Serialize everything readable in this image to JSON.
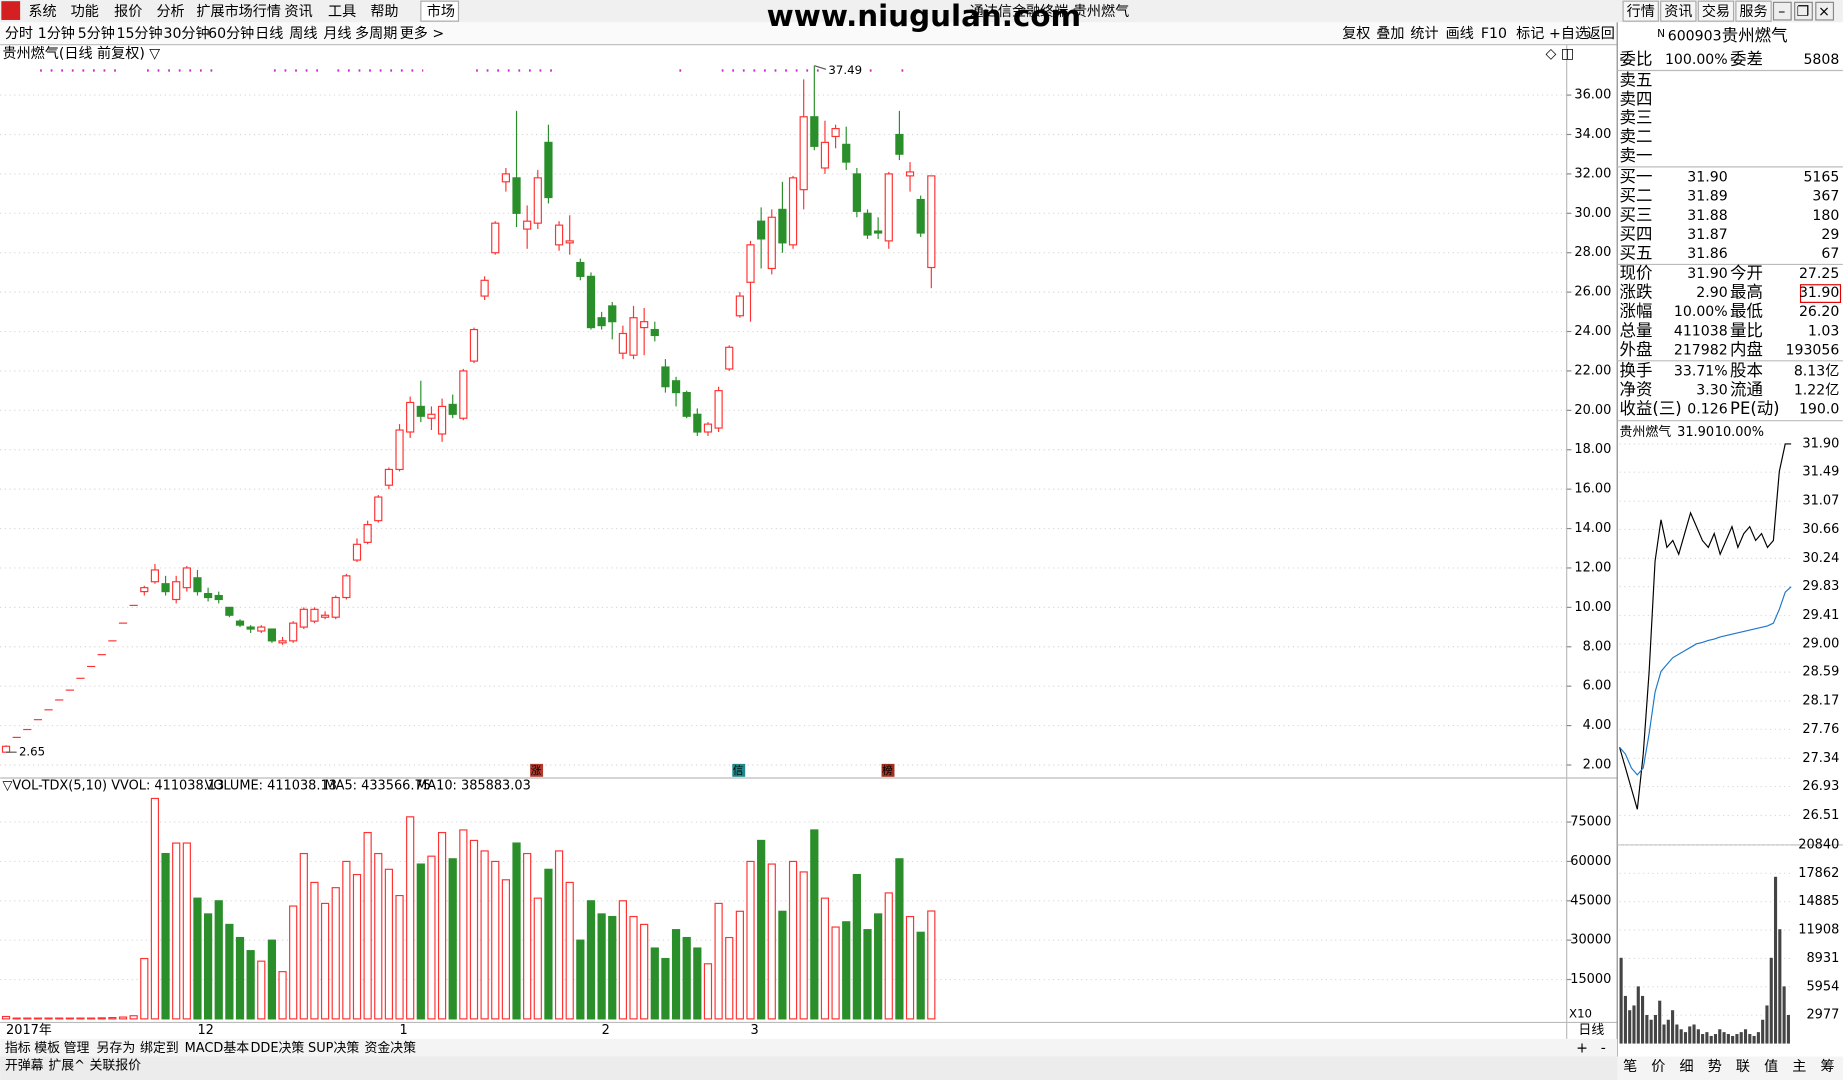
{
  "menu": {
    "items": [
      "系统",
      "功能",
      "报价",
      "分析",
      "扩展市场行情",
      "资讯",
      "工具",
      "帮助"
    ],
    "active": "市场"
  },
  "watermark": "www.niugulan.com",
  "window_title": "通达信金融终端 贵州燃气",
  "top_buttons": [
    "行情",
    "资讯",
    "交易",
    "服务"
  ],
  "periods": {
    "items": [
      "分时",
      "1分钟",
      "5分钟",
      "15分钟",
      "30分钟",
      "60分钟",
      "日线",
      "周线",
      "月线",
      "多周期",
      "更多 >"
    ],
    "active": "日线"
  },
  "tools": [
    "复权",
    "叠加",
    "统计",
    "画线",
    "F10",
    "标记",
    "+自选",
    "返回"
  ],
  "daily": {
    "type": "candlestick",
    "title": "贵州燃气(日线 前复权) ▽",
    "up_color": "#ff3232",
    "down_color": "#2a8f2a",
    "grid": true,
    "ylim": [
      1.46,
      38.56
    ],
    "yticks": [
      {
        "value": 2,
        "label": "2.00"
      },
      {
        "value": 4,
        "label": "4.00"
      },
      {
        "value": 6,
        "label": "6.00"
      },
      {
        "value": 8,
        "label": "8.00"
      },
      {
        "value": 10,
        "label": "10.00"
      },
      {
        "value": 12,
        "label": "12.00"
      },
      {
        "value": 14,
        "label": "14.00"
      },
      {
        "value": 16,
        "label": "16.00"
      },
      {
        "value": 18,
        "label": "18.00"
      },
      {
        "value": 20,
        "label": "20.00"
      },
      {
        "value": 22,
        "label": "22.00"
      },
      {
        "value": 24,
        "label": "24.00"
      },
      {
        "value": 26,
        "label": "26.00"
      },
      {
        "value": 28,
        "label": "28.00"
      },
      {
        "value": 30,
        "label": "30.00"
      },
      {
        "value": 32,
        "label": "32.00"
      },
      {
        "value": 34,
        "label": "34.00"
      },
      {
        "value": 36,
        "label": "36.00"
      }
    ],
    "high": 37.49,
    "low": 2.65,
    "signals": [
      {
        "label": "涨",
        "color": "#b03a2e"
      },
      {
        "label": "信",
        "color": "#1f8a8a"
      },
      {
        "label": "榜",
        "color": "#a03020"
      }
    ],
    "categories": [
      "2017年",
      null,
      null,
      null,
      null,
      null,
      null,
      null,
      null,
      null,
      null,
      null,
      null,
      null,
      null,
      null,
      null,
      null,
      "12",
      null,
      null,
      null,
      null,
      null,
      null,
      null,
      null,
      null,
      null,
      null,
      null,
      null,
      null,
      null,
      null,
      null,
      null,
      "1",
      null,
      null,
      null,
      null,
      null,
      null,
      null,
      null,
      null,
      null,
      null,
      null,
      null,
      null,
      null,
      null,
      null,
      null,
      "2",
      null,
      null,
      null,
      null,
      null,
      null,
      null,
      null,
      null,
      null,
      null,
      null,
      null,
      "3",
      null,
      null,
      null,
      null,
      null,
      null,
      null,
      null,
      null,
      null,
      null,
      null,
      null,
      null,
      null,
      null,
      null
    ],
    "candles": [
      [
        2.65,
        3.0,
        2.65,
        2.95
      ],
      [
        3.4,
        3.4,
        3.4,
        3.4
      ],
      [
        3.8,
        3.8,
        3.8,
        3.8
      ],
      [
        4.3,
        4.3,
        4.3,
        4.3
      ],
      [
        4.8,
        4.8,
        4.8,
        4.8
      ],
      [
        5.3,
        5.3,
        5.3,
        5.3
      ],
      [
        5.8,
        5.8,
        5.8,
        5.8
      ],
      [
        6.4,
        6.4,
        6.4,
        6.4
      ],
      [
        7.0,
        7.0,
        7.0,
        7.0
      ],
      [
        7.6,
        7.6,
        7.6,
        7.6
      ],
      [
        8.3,
        8.3,
        8.3,
        8.3
      ],
      [
        9.2,
        9.2,
        9.2,
        9.2
      ],
      [
        10.1,
        10.1,
        10.1,
        10.1
      ],
      [
        10.8,
        11.1,
        10.6,
        11.0
      ],
      [
        11.3,
        12.2,
        11.2,
        11.9
      ],
      [
        11.2,
        11.6,
        10.6,
        10.8
      ],
      [
        10.4,
        11.6,
        10.2,
        11.3
      ],
      [
        11.0,
        12.1,
        10.8,
        12.0
      ],
      [
        11.5,
        11.9,
        10.6,
        10.8
      ],
      [
        10.7,
        11.0,
        10.3,
        10.5
      ],
      [
        10.6,
        10.8,
        10.2,
        10.4
      ],
      [
        10.0,
        10.0,
        9.5,
        9.6
      ],
      [
        9.3,
        9.4,
        9.0,
        9.1
      ],
      [
        9.0,
        9.1,
        8.7,
        8.9
      ],
      [
        8.8,
        9.1,
        8.7,
        9.0
      ],
      [
        8.9,
        8.9,
        8.2,
        8.3
      ],
      [
        8.2,
        8.5,
        8.1,
        8.3
      ],
      [
        8.3,
        9.3,
        8.2,
        9.2
      ],
      [
        9.0,
        10.0,
        8.9,
        9.9
      ],
      [
        9.3,
        10.0,
        9.2,
        9.9
      ],
      [
        9.5,
        9.8,
        9.4,
        9.6
      ],
      [
        9.5,
        10.6,
        9.4,
        10.5
      ],
      [
        10.5,
        11.7,
        10.4,
        11.6
      ],
      [
        12.4,
        13.5,
        12.3,
        13.2
      ],
      [
        13.3,
        14.4,
        13.2,
        14.2
      ],
      [
        14.4,
        15.7,
        14.3,
        15.6
      ],
      [
        16.2,
        17.1,
        16.0,
        17.0
      ],
      [
        17.0,
        19.3,
        16.9,
        19.0
      ],
      [
        18.9,
        20.7,
        18.6,
        20.4
      ],
      [
        20.2,
        21.5,
        19.4,
        19.7
      ],
      [
        19.6,
        20.2,
        19.0,
        19.8
      ],
      [
        18.8,
        20.6,
        18.4,
        20.2
      ],
      [
        20.3,
        20.8,
        19.6,
        19.8
      ],
      [
        19.6,
        22.1,
        19.5,
        22.0
      ],
      [
        22.5,
        24.2,
        22.4,
        24.1
      ],
      [
        25.8,
        26.8,
        25.6,
        26.6
      ],
      [
        28.0,
        29.6,
        27.9,
        29.5
      ],
      [
        31.6,
        32.3,
        31.1,
        32.0
      ],
      [
        31.8,
        35.2,
        29.3,
        30.0
      ],
      [
        29.2,
        30.4,
        28.2,
        29.6
      ],
      [
        29.5,
        32.2,
        29.2,
        31.8
      ],
      [
        33.6,
        34.5,
        30.5,
        30.8
      ],
      [
        28.4,
        29.6,
        28.1,
        29.4
      ],
      [
        28.5,
        29.9,
        27.9,
        28.6
      ],
      [
        27.5,
        27.7,
        26.6,
        26.8
      ],
      [
        26.8,
        27.0,
        24.1,
        24.2
      ],
      [
        24.7,
        25.0,
        24.1,
        24.3
      ],
      [
        25.3,
        25.5,
        23.6,
        24.5
      ],
      [
        22.9,
        24.3,
        22.6,
        23.9
      ],
      [
        22.8,
        25.3,
        22.6,
        24.7
      ],
      [
        24.2,
        25.2,
        22.8,
        24.5
      ],
      [
        24.1,
        24.5,
        23.5,
        23.8
      ],
      [
        22.2,
        22.6,
        20.9,
        21.2
      ],
      [
        21.5,
        21.7,
        20.2,
        20.9
      ],
      [
        20.9,
        21.0,
        19.6,
        19.7
      ],
      [
        19.8,
        20.1,
        18.7,
        18.9
      ],
      [
        18.9,
        19.4,
        18.7,
        19.3
      ],
      [
        19.1,
        21.2,
        18.9,
        21.0
      ],
      [
        22.1,
        23.3,
        22.0,
        23.2
      ],
      [
        24.8,
        26.0,
        24.7,
        25.8
      ],
      [
        26.5,
        28.6,
        24.5,
        28.4
      ],
      [
        29.6,
        30.3,
        27.2,
        28.7
      ],
      [
        27.2,
        30.2,
        26.9,
        29.8
      ],
      [
        30.2,
        31.6,
        28.0,
        28.5
      ],
      [
        28.4,
        31.9,
        28.2,
        31.8
      ],
      [
        31.2,
        36.8,
        30.2,
        34.9
      ],
      [
        34.9,
        37.49,
        33.2,
        33.4
      ],
      [
        32.3,
        34.7,
        32.0,
        33.6
      ],
      [
        33.9,
        34.5,
        33.3,
        34.3
      ],
      [
        33.5,
        34.4,
        32.2,
        32.6
      ],
      [
        32.0,
        32.3,
        29.8,
        30.1
      ],
      [
        30.0,
        30.2,
        28.7,
        28.9
      ],
      [
        29.1,
        29.8,
        28.7,
        29.0
      ],
      [
        28.6,
        32.1,
        28.2,
        32.0
      ],
      [
        34.0,
        35.2,
        32.7,
        33.0
      ],
      [
        31.9,
        32.6,
        31.1,
        32.1
      ],
      [
        30.7,
        30.9,
        28.8,
        29.0
      ],
      [
        27.25,
        31.9,
        26.2,
        31.9
      ]
    ]
  },
  "volume": {
    "type": "bar",
    "header": "▽VOL-TDX(5,10) VVOL: 411038.13",
    "legend": [
      {
        "name": "VOLUME: 411038.13",
        "color": "#1e78c8"
      },
      {
        "name": "MA5: 433566.75",
        "color": "#1e78c8"
      },
      {
        "name": "MA10: 385883.03",
        "color": "#a0208c"
      }
    ],
    "multiplier": "X10",
    "period": "日线",
    "ylim": [
      0,
      91800
    ],
    "yticks": [
      15000,
      30000,
      45000,
      60000,
      75000
    ],
    "values": [
      900,
      300,
      300,
      300,
      300,
      300,
      300,
      300,
      300,
      400,
      500,
      700,
      1200,
      23000,
      84000,
      63000,
      67000,
      67000,
      46000,
      40000,
      45000,
      36000,
      31000,
      26000,
      22000,
      30000,
      18000,
      43000,
      63000,
      52000,
      44000,
      50000,
      60000,
      55000,
      71000,
      63000,
      57000,
      47000,
      77000,
      59000,
      62000,
      71000,
      61000,
      72000,
      68000,
      64000,
      60000,
      53000,
      67000,
      63000,
      46000,
      57000,
      64000,
      52000,
      30000,
      45000,
      40000,
      39000,
      45000,
      39000,
      36000,
      27000,
      23000,
      34000,
      31000,
      27000,
      21000,
      44000,
      31000,
      41000,
      60000,
      68000,
      59000,
      41000,
      60000,
      56000,
      72000,
      46000,
      35000,
      37000,
      55000,
      34000,
      40000,
      48000,
      61000,
      39000,
      33000,
      41104
    ]
  },
  "bottom_tabs": {
    "items": [
      "指标",
      "模板",
      "管理",
      "另存为",
      "绑定到",
      "MACD基本",
      "DDE决策",
      "SUP决策",
      "资金决策"
    ],
    "active": "管理"
  },
  "zoom": [
    "+",
    "-"
  ],
  "status": [
    "开弹幕",
    "扩展^",
    "关联报价"
  ],
  "quote": {
    "flag": "N",
    "code": "600903",
    "name": "贵州燃气",
    "ratio": [
      {
        "text": "委比"
      },
      {
        "text": "100.00%",
        "color": "#e00000"
      },
      {
        "text": "委差"
      },
      {
        "text": "5808",
        "color": "#e00000"
      }
    ],
    "asks": [
      "卖五",
      "卖四",
      "卖三",
      "卖二",
      "卖一"
    ],
    "bids": [
      {
        "label": "买一",
        "price": "31.90",
        "volume": "5165"
      },
      {
        "label": "买二",
        "price": "31.89",
        "volume": "367"
      },
      {
        "label": "买三",
        "price": "31.88",
        "volume": "180"
      },
      {
        "label": "买四",
        "price": "31.87",
        "volume": "29"
      },
      {
        "label": "买五",
        "price": "31.86",
        "volume": "67"
      }
    ],
    "price_color": "#e00000",
    "stats": [
      [
        {
          "text": "现价"
        },
        {
          "text": "31.90",
          "color": "#e00000"
        },
        {
          "text": "今开"
        },
        {
          "text": "27.25",
          "color": "#009900"
        }
      ],
      [
        {
          "text": "涨跌"
        },
        {
          "text": "2.90",
          "color": "#e00000"
        },
        {
          "text": "最高"
        },
        {
          "text": "31.90",
          "color": "#e00000",
          "boxed": true
        }
      ],
      [
        {
          "text": "涨幅"
        },
        {
          "text": "10.00%",
          "color": "#e00000"
        },
        {
          "text": "最低"
        },
        {
          "text": "26.20",
          "color": "#009900"
        }
      ],
      [
        {
          "text": "总量"
        },
        {
          "text": "411038"
        },
        {
          "text": "量比"
        },
        {
          "text": "1.03",
          "color": "#e00000"
        }
      ],
      [
        {
          "text": "外盘"
        },
        {
          "text": "217982",
          "color": "#e00000"
        },
        {
          "text": "内盘"
        },
        {
          "text": "193056",
          "color": "#009900"
        }
      ],
      [
        {
          "text": "换手"
        },
        {
          "text": "33.71%"
        },
        {
          "text": "股本"
        },
        {
          "text": "8.13亿"
        }
      ],
      [
        {
          "text": "净资"
        },
        {
          "text": "3.30"
        },
        {
          "text": "流通"
        },
        {
          "text": "1.22亿"
        }
      ],
      [
        {
          "text": "收益(三)"
        },
        {
          "text": "0.126"
        },
        {
          "text": "PE(动)"
        },
        {
          "text": "190.0"
        }
      ]
    ]
  },
  "intraday": {
    "type": "line",
    "title": {
      "name": "贵州燃气",
      "price": "31.90",
      "change": "10.00%"
    },
    "up_color": "#e00000",
    "down_color": "#009900",
    "ylim": [
      26.1,
      31.93
    ],
    "yticks": [
      {
        "value": 26.51,
        "label": "26.51"
      },
      {
        "value": 26.93,
        "label": "26.93"
      },
      {
        "value": 27.34,
        "label": "27.34"
      },
      {
        "value": 27.76,
        "label": "27.76"
      },
      {
        "value": 28.17,
        "label": "28.17"
      },
      {
        "value": 28.59,
        "label": "28.59"
      },
      {
        "value": 29.0,
        "label": "29.00"
      },
      {
        "value": 29.41,
        "label": "29.41"
      },
      {
        "value": 29.83,
        "label": "29.83"
      },
      {
        "value": 30.24,
        "label": "30.24"
      },
      {
        "value": 30.66,
        "label": "30.66"
      },
      {
        "value": 31.07,
        "label": "31.07"
      },
      {
        "value": 31.49,
        "label": "31.49"
      },
      {
        "value": 31.9,
        "label": "31.90"
      }
    ],
    "series": [
      {
        "name": "价格",
        "color": "#000000",
        "values": [
          27.5,
          27.2,
          26.9,
          26.6,
          27.4,
          28.6,
          30.2,
          30.8,
          30.4,
          30.5,
          30.3,
          30.6,
          30.9,
          30.7,
          30.5,
          30.4,
          30.6,
          30.3,
          30.5,
          30.7,
          30.4,
          30.6,
          30.7,
          30.5,
          30.6,
          30.4,
          30.5,
          31.5,
          31.9,
          31.9
        ]
      },
      {
        "name": "均价",
        "color": "#1e78c8",
        "values": [
          27.5,
          27.4,
          27.2,
          27.1,
          27.2,
          27.7,
          28.3,
          28.6,
          28.7,
          28.8,
          28.85,
          28.9,
          28.95,
          29.0,
          29.02,
          29.05,
          29.07,
          29.1,
          29.12,
          29.14,
          29.16,
          29.18,
          29.2,
          29.22,
          29.24,
          29.26,
          29.3,
          29.5,
          29.75,
          29.83
        ]
      }
    ],
    "volume_color": "#444444",
    "vylim": [
      0,
      20840
    ],
    "vyticks": [
      2977,
      5954,
      8931,
      11908,
      14885,
      17862,
      20840
    ],
    "volume": [
      9000,
      5000,
      3500,
      4000,
      6000,
      5000,
      3000,
      2500,
      3000,
      4500,
      2000,
      2500,
      3500,
      2000,
      1500,
      1200,
      1800,
      2000,
      1500,
      1000,
      1200,
      800,
      1000,
      1500,
      1200,
      1000,
      800,
      1000,
      1200,
      1500,
      1000,
      800,
      1200,
      2500,
      4000,
      9000,
      17500,
      12000,
      6000,
      3000
    ]
  },
  "panel_tabs": {
    "items": [
      "笔",
      "价",
      "细",
      "势",
      "联",
      "值",
      "主",
      "筹"
    ],
    "active": "势"
  }
}
